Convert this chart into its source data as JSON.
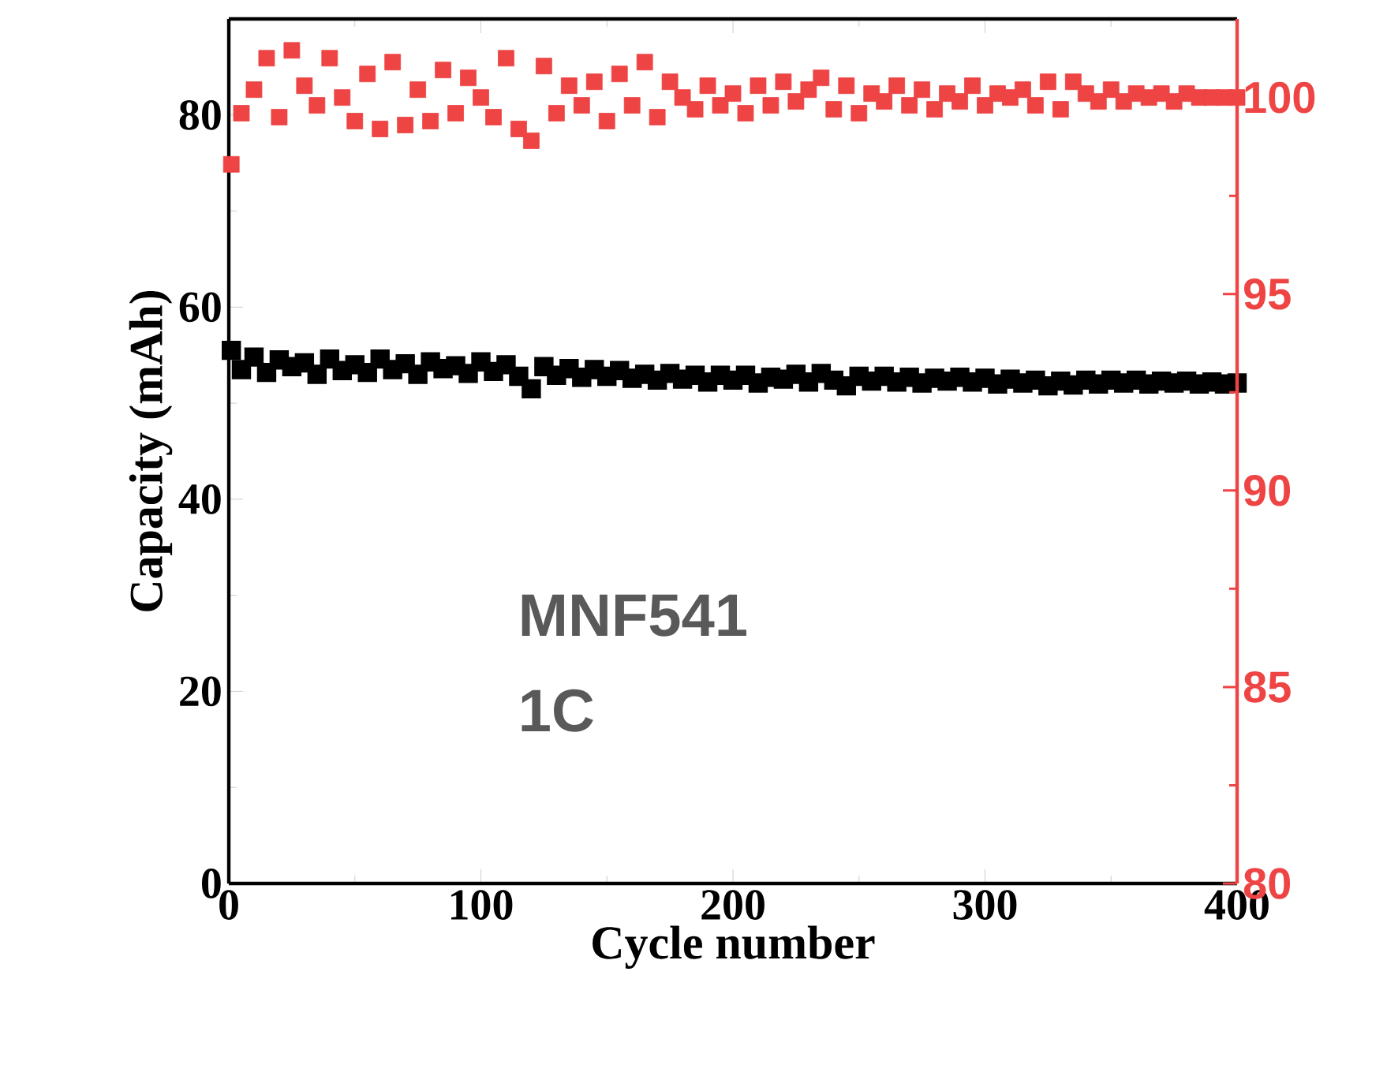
{
  "chart_data": {
    "type": "scatter",
    "xlabel": "Cycle number",
    "ylabel": "Capacity (mAh)",
    "marker": "square",
    "xlim": [
      0,
      400
    ],
    "xticks": [
      0,
      100,
      200,
      300,
      400
    ],
    "ylim": [
      0,
      90
    ],
    "yticks": [
      0,
      20,
      40,
      60,
      80
    ],
    "y2lim": [
      80,
      102
    ],
    "y2ticks": [
      80,
      85,
      90,
      95,
      100
    ],
    "annotations": [
      "MNF541",
      "1C"
    ],
    "x": [
      1,
      5,
      10,
      15,
      20,
      25,
      30,
      35,
      40,
      45,
      50,
      55,
      60,
      65,
      70,
      75,
      80,
      85,
      90,
      95,
      100,
      105,
      110,
      115,
      120,
      125,
      130,
      135,
      140,
      145,
      150,
      155,
      160,
      165,
      170,
      175,
      180,
      185,
      190,
      195,
      200,
      205,
      210,
      215,
      220,
      225,
      230,
      235,
      240,
      245,
      250,
      255,
      260,
      265,
      270,
      275,
      280,
      285,
      290,
      295,
      300,
      305,
      310,
      315,
      320,
      325,
      330,
      335,
      340,
      345,
      350,
      355,
      360,
      365,
      370,
      375,
      380,
      385,
      390,
      395,
      400
    ],
    "series": [
      {
        "color": "#000000",
        "values": [
          55.5,
          53.5,
          54.8,
          53.2,
          54.5,
          53.8,
          54.2,
          53.0,
          54.6,
          53.4,
          54.0,
          53.2,
          54.6,
          53.5,
          54.1,
          53.0,
          54.3,
          53.6,
          53.9,
          53.1,
          54.3,
          53.3,
          54.0,
          52.8,
          51.5,
          53.8,
          52.9,
          53.6,
          52.7,
          53.5,
          52.8,
          53.4,
          52.6,
          53.0,
          52.4,
          53.1,
          52.5,
          52.9,
          52.2,
          52.9,
          52.4,
          52.9,
          52.1,
          52.7,
          52.5,
          53.0,
          52.2,
          53.1,
          52.4,
          51.8,
          52.8,
          52.3,
          52.8,
          52.2,
          52.7,
          52.1,
          52.6,
          52.3,
          52.7,
          52.2,
          52.6,
          52.0,
          52.5,
          52.1,
          52.4,
          51.8,
          52.3,
          51.9,
          52.4,
          52.0,
          52.4,
          52.1,
          52.4,
          52.0,
          52.3,
          52.1,
          52.3,
          52.0,
          52.2,
          52.0,
          52.1
        ]
      },
      {
        "color": "#ee4444",
        "axis": "y2",
        "values": [
          98.3,
          99.6,
          100.2,
          101.0,
          99.5,
          101.2,
          100.3,
          99.8,
          101.0,
          100.0,
          99.4,
          100.6,
          99.2,
          100.9,
          99.3,
          100.2,
          99.4,
          100.7,
          99.6,
          100.5,
          100.0,
          99.5,
          101.0,
          99.2,
          98.9,
          100.8,
          99.6,
          100.3,
          99.8,
          100.4,
          99.4,
          100.6,
          99.8,
          100.9,
          99.5,
          100.4,
          100.0,
          99.7,
          100.3,
          99.8,
          100.1,
          99.6,
          100.3,
          99.8,
          100.4,
          99.9,
          100.2,
          100.5,
          99.7,
          100.3,
          99.6,
          100.1,
          99.9,
          100.3,
          99.8,
          100.2,
          99.7,
          100.1,
          99.9,
          100.3,
          99.8,
          100.1,
          100.0,
          100.2,
          99.8,
          100.4,
          99.7,
          100.4,
          100.1,
          99.9,
          100.2,
          99.9,
          100.1,
          100.0,
          100.1,
          99.9,
          100.1,
          100.0,
          100.0,
          100.0,
          100.0
        ]
      }
    ]
  }
}
